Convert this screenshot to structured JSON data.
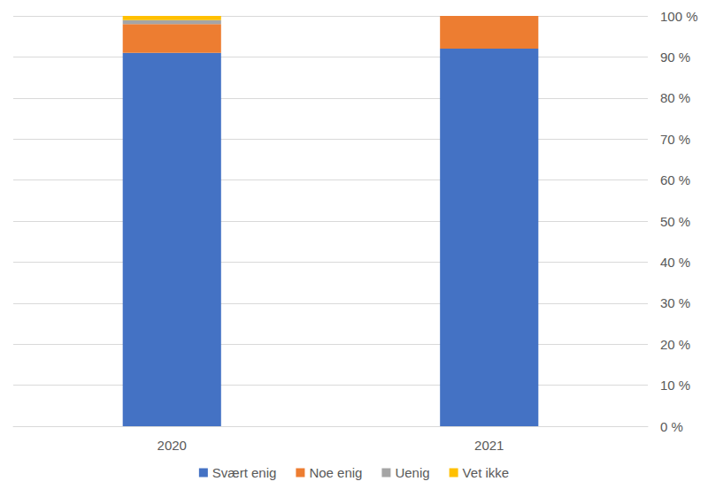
{
  "chart_data": {
    "type": "bar",
    "categories": [
      "2020",
      "2021"
    ],
    "series": [
      {
        "name": "Svært enig",
        "color": "#4472c4",
        "values": [
          91,
          92
        ]
      },
      {
        "name": "Noe enig",
        "color": "#ed7d31",
        "values": [
          7,
          8
        ]
      },
      {
        "name": "Uenig",
        "color": "#a5a5a5",
        "values": [
          1,
          0
        ]
      },
      {
        "name": "Vet ikke",
        "color": "#ffc000",
        "values": [
          1,
          0
        ]
      }
    ],
    "ylim": [
      0,
      100
    ],
    "yticks": [
      {
        "value": 0,
        "label": "0 %"
      },
      {
        "value": 10,
        "label": "10 %"
      },
      {
        "value": 20,
        "label": "20 %"
      },
      {
        "value": 30,
        "label": "30 %"
      },
      {
        "value": 40,
        "label": "40 %"
      },
      {
        "value": 50,
        "label": "50 %"
      },
      {
        "value": 60,
        "label": "60 %"
      },
      {
        "value": 70,
        "label": "70 %"
      },
      {
        "value": 80,
        "label": "80 %"
      },
      {
        "value": 90,
        "label": "90 %"
      },
      {
        "value": 100,
        "label": "100 %"
      }
    ],
    "stacked": true,
    "grid": true,
    "legend": "bottom"
  }
}
